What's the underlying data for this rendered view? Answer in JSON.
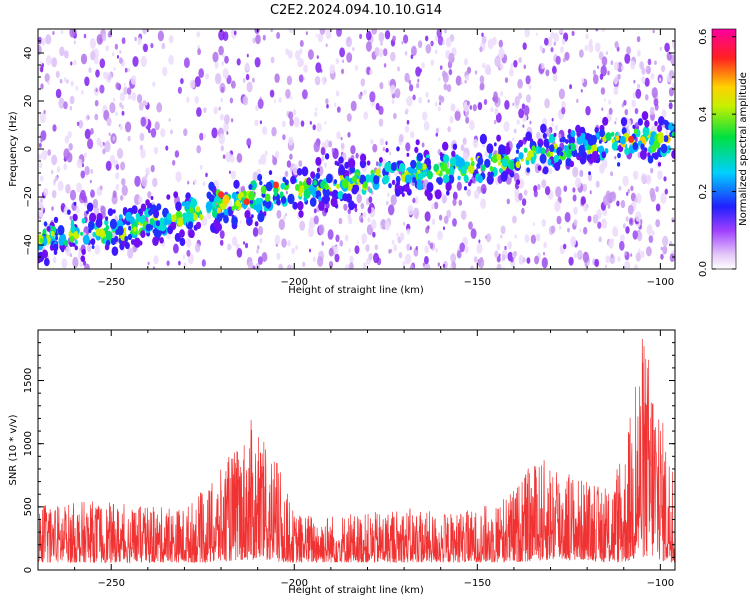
{
  "title": "C2E2.2024.094.10.10.G14",
  "chart_data": [
    {
      "type": "heatmap",
      "xlabel": "Height of straight line (km)",
      "ylabel": "Frequency (Hz)",
      "xlim": [
        -270,
        -96
      ],
      "ylim": [
        -50,
        50
      ],
      "xticks": [
        -250,
        -200,
        -150,
        -100
      ],
      "yticks": [
        -40,
        -20,
        0,
        20,
        40
      ],
      "colorbar": {
        "label": "Normalized spectral amplitude",
        "range": [
          0.0,
          0.62
        ],
        "ticks": [
          "0.0",
          "0.2",
          "0.4",
          "0.6"
        ],
        "colormap": "rainbow (white - purple - blue - cyan - green - yellow - red - magenta)"
      },
      "ridge": {
        "description": "Doppler track drifting upward with height",
        "x": [
          -270,
          -250,
          -230,
          -210,
          -190,
          -170,
          -150,
          -130,
          -110,
          -96
        ],
        "frequency": [
          -37,
          -35,
          -27,
          -20,
          -15,
          -10,
          -7,
          -1,
          4,
          4
        ]
      }
    },
    {
      "type": "line",
      "xlabel": "Height of straight line (km)",
      "ylabel": "SNR (10 * v/v)",
      "xlim": [
        -270,
        -96
      ],
      "ylim": [
        0,
        1900
      ],
      "xticks": [
        -250,
        -200,
        -150,
        -100
      ],
      "yticks": [
        0,
        500,
        1000,
        1500
      ],
      "series_color": "#f03232",
      "envelope": {
        "x": [
          -270,
          -255,
          -240,
          -230,
          -222,
          -218,
          -214,
          -212,
          -208,
          -205,
          -200,
          -190,
          -180,
          -170,
          -160,
          -150,
          -140,
          -135,
          -130,
          -125,
          -120,
          -115,
          -110,
          -107,
          -105,
          -102,
          -100,
          -98,
          -96
        ],
        "low": [
          60,
          60,
          60,
          60,
          60,
          70,
          80,
          80,
          80,
          60,
          60,
          60,
          60,
          60,
          60,
          60,
          60,
          70,
          80,
          80,
          80,
          60,
          60,
          80,
          100,
          100,
          80,
          60,
          60
        ],
        "high": [
          520,
          550,
          500,
          500,
          700,
          900,
          1050,
          1200,
          1000,
          900,
          450,
          450,
          450,
          500,
          450,
          480,
          650,
          850,
          900,
          800,
          700,
          650,
          900,
          1500,
          1900,
          1650,
          1300,
          1000,
          850
        ]
      }
    }
  ]
}
